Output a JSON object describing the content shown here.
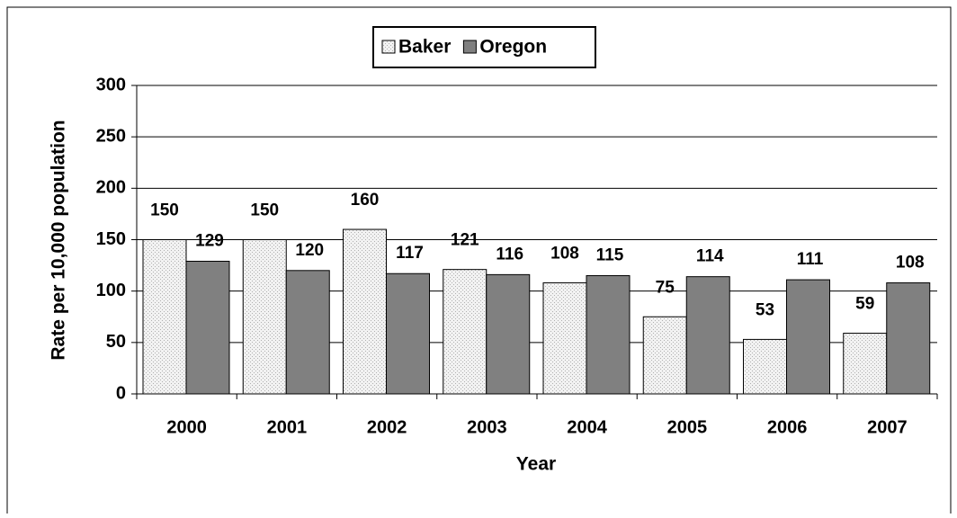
{
  "chart_data": {
    "type": "bar",
    "categories": [
      "2000",
      "2001",
      "2002",
      "2003",
      "2004",
      "2005",
      "2006",
      "2007"
    ],
    "series": [
      {
        "name": "Baker",
        "color": "#e6e6e6",
        "values": [
          150,
          150,
          160,
          121,
          108,
          75,
          53,
          59
        ]
      },
      {
        "name": "Oregon",
        "color": "#808080",
        "values": [
          129,
          120,
          117,
          116,
          115,
          114,
          111,
          108
        ]
      }
    ],
    "ylim": [
      0,
      300
    ],
    "yticks": [
      0,
      50,
      100,
      150,
      200,
      250,
      300
    ],
    "grid": true,
    "xlabel": "Year",
    "ylabel": "Rate per 10,000 population",
    "legend": "top"
  }
}
